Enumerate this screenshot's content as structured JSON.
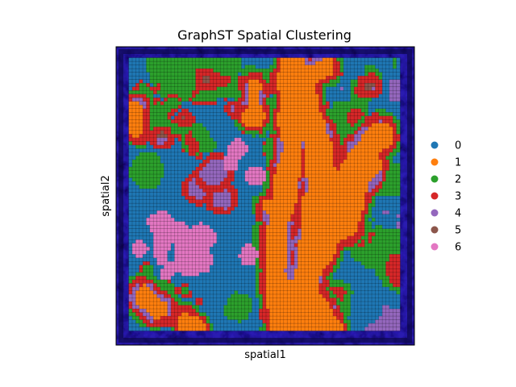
{
  "chart_data": {
    "type": "scatter",
    "title": "GraphST Spatial Clustering",
    "xlabel": "spatial1",
    "ylabel": "spatial2",
    "xticks": [],
    "yticks": [],
    "grid": false,
    "legend_position": "right",
    "background_image": "tissue-histology-image",
    "categories": [
      "0",
      "1",
      "2",
      "3",
      "4",
      "5",
      "6"
    ],
    "colors": [
      "#1f77b4",
      "#ff7f0e",
      "#2ca02c",
      "#d62728",
      "#9467bd",
      "#8c564b",
      "#e377c2"
    ],
    "image_colors": {
      "tissue_background": "#2b1fb0",
      "tissue_edge": "#0a0640"
    },
    "grid_spots": [
      77,
      75
    ]
  }
}
